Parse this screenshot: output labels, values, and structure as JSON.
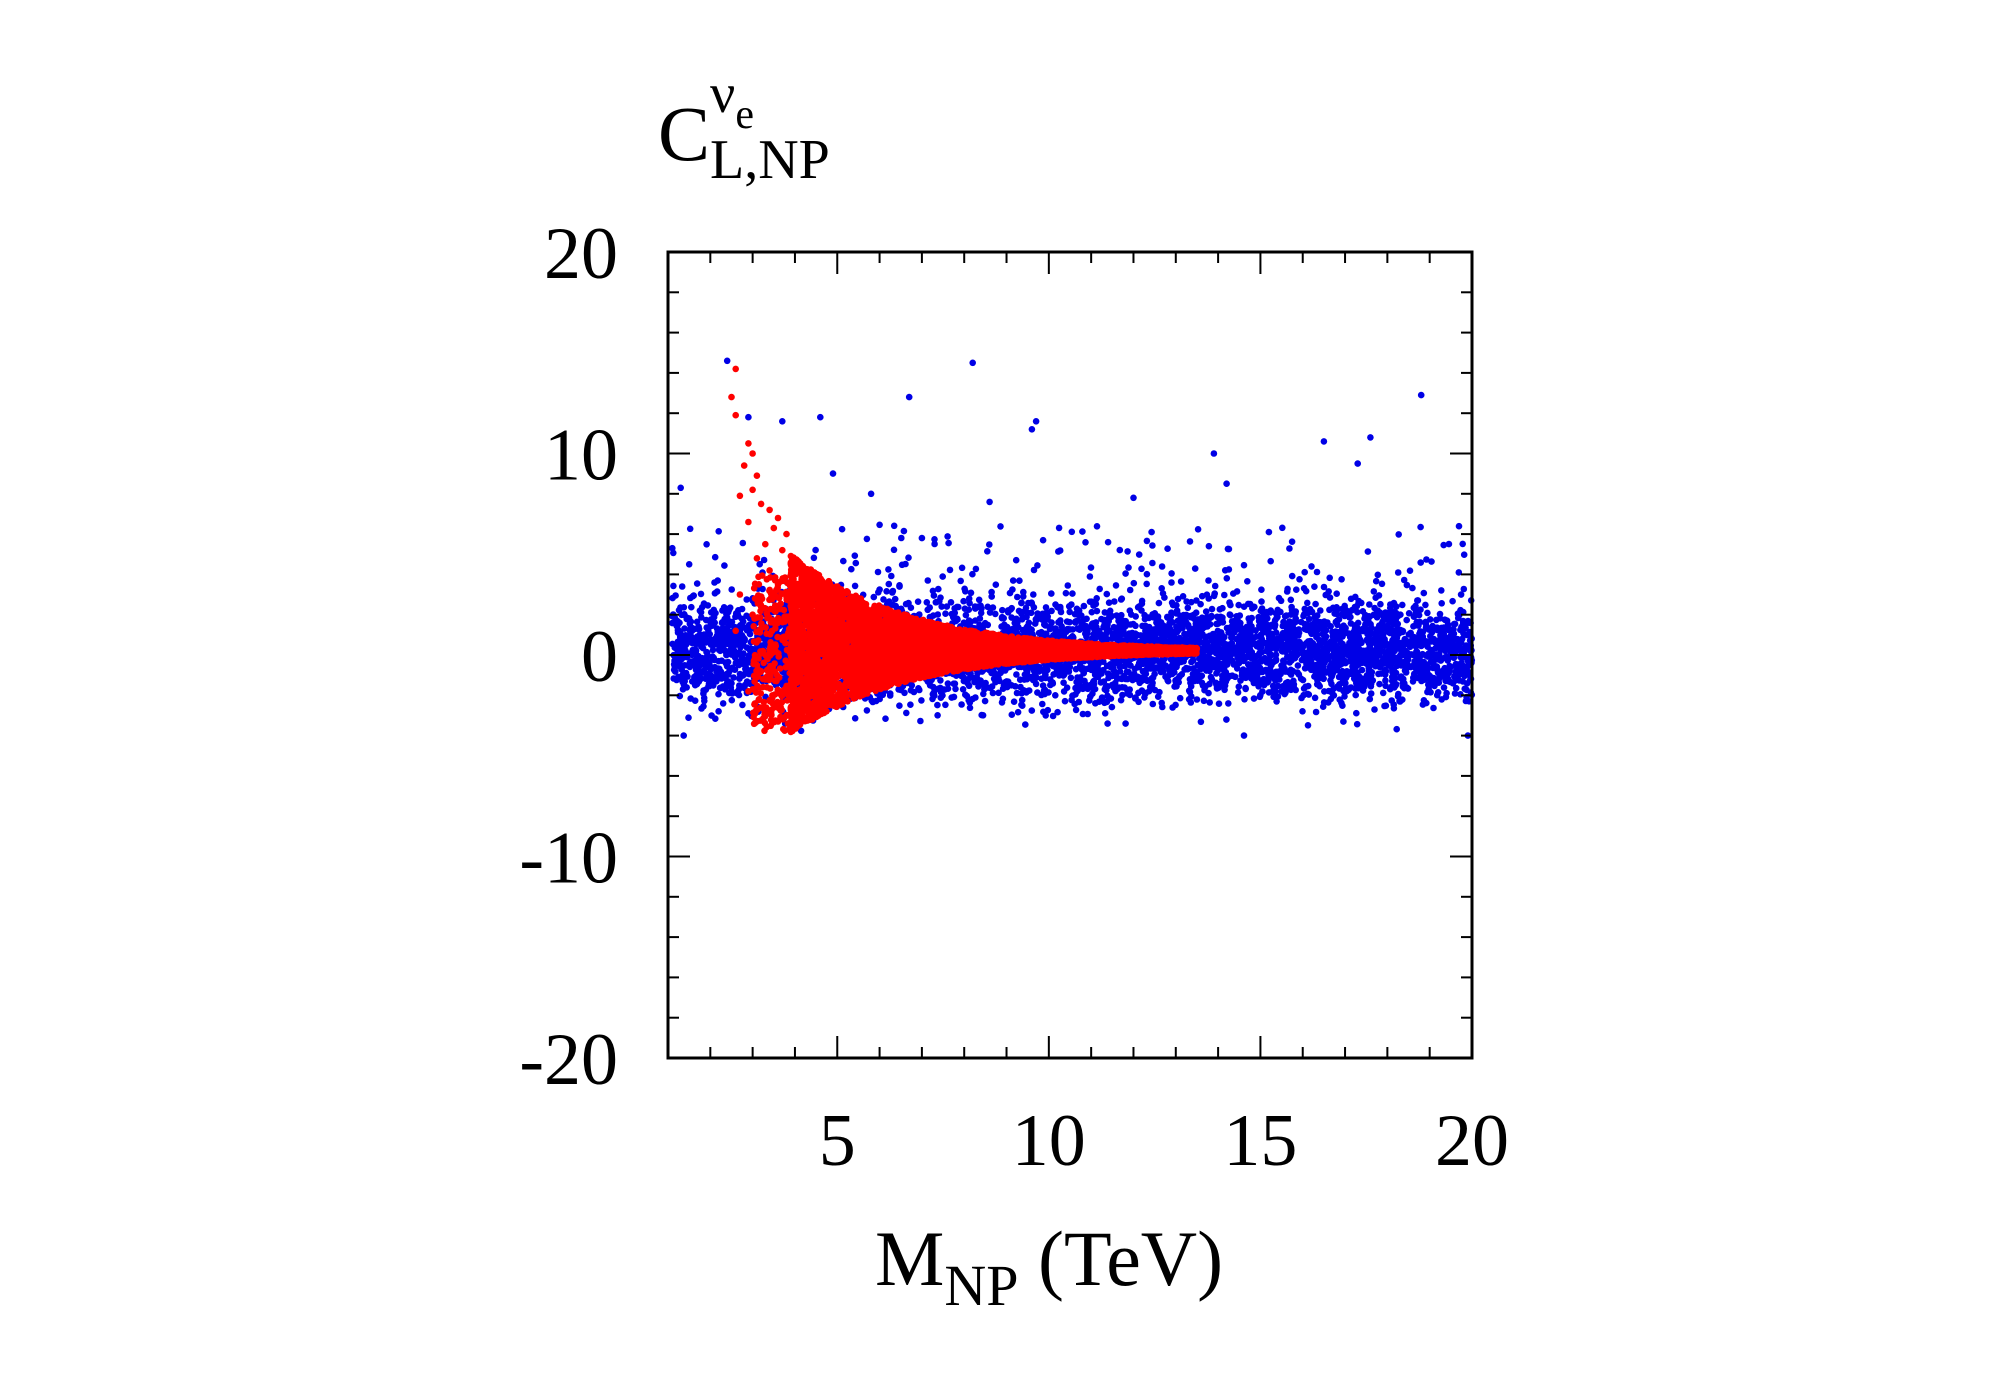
{
  "chart_data": {
    "type": "scatter",
    "title": "",
    "ylabel": {
      "main": "C",
      "superscript": "ν",
      "superscript_sub": "e",
      "subscript": "L,NP"
    },
    "xlabel": {
      "main": "M",
      "subscript": "NP",
      "unit": " (TeV)"
    },
    "xlim": [
      1,
      20
    ],
    "ylim": [
      -20,
      20
    ],
    "x_ticks": [
      5,
      10,
      15,
      20
    ],
    "x_tick_labels": [
      "5",
      "10",
      "15",
      "20"
    ],
    "y_ticks": [
      -20,
      -10,
      0,
      10,
      20
    ],
    "y_tick_labels": [
      "-20",
      "-10",
      "0",
      "10",
      "20"
    ],
    "grid": false,
    "legend": "none",
    "colors": {
      "blue": "#0000e6",
      "red": "#ff0000",
      "frame": "#000000"
    },
    "series": [
      {
        "color": "blue",
        "band": {
          "x_range": [
            1.1,
            20
          ],
          "center": 0.2,
          "half_width": 1.8,
          "spread": 1.2
        },
        "outliers": [
          [
            1.3,
            8.3
          ],
          [
            1.5,
            4.5
          ],
          [
            2.4,
            14.6
          ],
          [
            2.9,
            11.8
          ],
          [
            3.7,
            11.6
          ],
          [
            4.6,
            11.8
          ],
          [
            4.9,
            9.0
          ],
          [
            6.7,
            12.8
          ],
          [
            8.2,
            14.5
          ],
          [
            9.6,
            11.2
          ],
          [
            9.7,
            11.6
          ],
          [
            13.9,
            10.0
          ],
          [
            14.2,
            8.5
          ],
          [
            16.5,
            10.6
          ],
          [
            17.6,
            10.8
          ],
          [
            18.8,
            12.9
          ],
          [
            12.0,
            7.8
          ],
          [
            17.3,
            9.5
          ],
          [
            15.2,
            6.1
          ],
          [
            11.4,
            5.6
          ],
          [
            8.6,
            7.6
          ],
          [
            7.0,
            5.8
          ],
          [
            5.8,
            8.0
          ]
        ]
      },
      {
        "color": "red",
        "funnel": {
          "x_range": [
            3.9,
            13.5
          ],
          "upper_at_start": 5.0,
          "lower_at_start": -3.9,
          "tip_y": 0.2
        },
        "scatter": [
          [
            2.6,
            14.2
          ],
          [
            2.5,
            12.8
          ],
          [
            2.6,
            11.9
          ],
          [
            2.9,
            10.5
          ],
          [
            3.0,
            10.0
          ],
          [
            2.8,
            9.4
          ],
          [
            3.1,
            8.9
          ],
          [
            3.0,
            8.2
          ],
          [
            2.7,
            7.9
          ],
          [
            3.2,
            7.5
          ],
          [
            3.4,
            7.2
          ],
          [
            3.6,
            6.8
          ],
          [
            3.5,
            6.3
          ],
          [
            3.8,
            6.0
          ],
          [
            3.3,
            5.5
          ],
          [
            3.7,
            5.2
          ],
          [
            2.9,
            6.6
          ],
          [
            3.1,
            4.8
          ],
          [
            3.4,
            4.2
          ],
          [
            3.6,
            3.5
          ],
          [
            2.7,
            3.0
          ],
          [
            3.2,
            2.4
          ],
          [
            3.5,
            1.6
          ],
          [
            3.8,
            0.9
          ],
          [
            3.1,
            -0.5
          ],
          [
            3.4,
            -1.2
          ],
          [
            3.7,
            -2.0
          ],
          [
            3.3,
            -2.7
          ],
          [
            3.6,
            -3.3
          ],
          [
            2.9,
            -1.8
          ],
          [
            2.6,
            1.2
          ],
          [
            3.0,
            2.0
          ]
        ]
      }
    ]
  }
}
